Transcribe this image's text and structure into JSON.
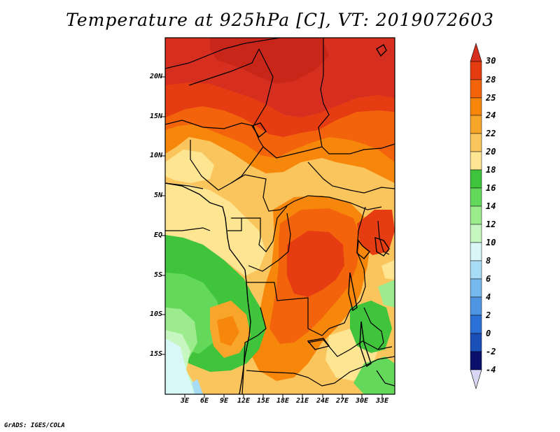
{
  "title": "Temperature at 925hPa [C], VT: 2019072603",
  "credit": "GrADS: IGES/COLA",
  "lat_labels": [
    "20N",
    "15N",
    "10N",
    "5N",
    "EQ",
    "5S",
    "10S",
    "15S"
  ],
  "lon_labels": [
    "3E",
    "6E",
    "9E",
    "12E",
    "15E",
    "18E",
    "21E",
    "24E",
    "27E",
    "30E",
    "33E"
  ],
  "colorbar": {
    "levels": [
      "30",
      "28",
      "25",
      "24",
      "22",
      "20",
      "18",
      "16",
      "14",
      "12",
      "10",
      "8",
      "6",
      "4",
      "2",
      "0",
      "-2",
      "-4"
    ],
    "colors_top_to_bottom": [
      "#d62f1f",
      "#e63c12",
      "#f2630c",
      "#f7870b",
      "#f8a62b",
      "#fbc55e",
      "#fde592",
      "#3fc43c",
      "#64d85b",
      "#9cec8d",
      "#c7f7c0",
      "#d9f7f7",
      "#a8dcf5",
      "#77b8ef",
      "#4f95e3",
      "#2b6fd8",
      "#1b4fb8",
      "#0d2f96",
      "#08106b",
      "#d8d8f5"
    ]
  }
}
